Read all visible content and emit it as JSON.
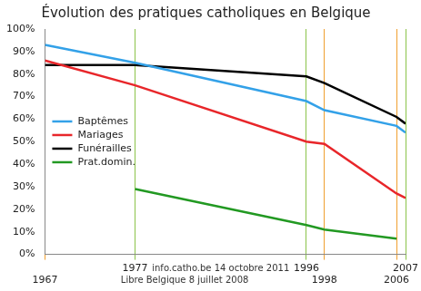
{
  "chart_data": {
    "type": "line",
    "title": "Évolution des pratiques catholiques en Belgique",
    "x": [
      1967,
      1977,
      1996,
      1998,
      2006,
      2007
    ],
    "series": [
      {
        "name": "Baptêmes",
        "color": "#33a1e8",
        "values": [
          93,
          85,
          68,
          64,
          57,
          54
        ]
      },
      {
        "name": "Mariages",
        "color": "#e8262a",
        "values": [
          86,
          75,
          50,
          49,
          27,
          25
        ]
      },
      {
        "name": "Funérailles",
        "color": "#000000",
        "values": [
          84,
          84,
          79,
          76,
          61,
          58
        ]
      },
      {
        "name": "Prat.domin.",
        "color": "#229922",
        "values": [
          null,
          29,
          13,
          11,
          7,
          null
        ]
      }
    ],
    "xlim": [
      1967,
      2007
    ],
    "xticks": [
      1967,
      1977,
      1996,
      1998,
      2006,
      2007
    ],
    "ylim": [
      0,
      100
    ],
    "yticks": [
      {
        "value": 0,
        "label": "0%"
      },
      {
        "value": 10,
        "label": "10%"
      },
      {
        "value": 20,
        "label": "20%"
      },
      {
        "value": 30,
        "label": "30%"
      },
      {
        "value": 40,
        "label": "40%"
      },
      {
        "value": 50,
        "label": "50%"
      },
      {
        "value": 60,
        "label": "60%"
      },
      {
        "value": 70,
        "label": "70%"
      },
      {
        "value": 80,
        "label": "80%"
      },
      {
        "value": 90,
        "label": "90%"
      },
      {
        "value": 100,
        "label": "100%"
      }
    ],
    "annotations": [
      {
        "text": "info.catho.be 14 octobre 2011",
        "years": [
          1977,
          1996,
          2007
        ]
      },
      {
        "text": "Libre Belgique 8 juillet 2008",
        "years": [
          1967,
          1998,
          2006
        ]
      }
    ],
    "grid": "x",
    "legend": "left",
    "marker": "none",
    "line_style": "solid"
  }
}
